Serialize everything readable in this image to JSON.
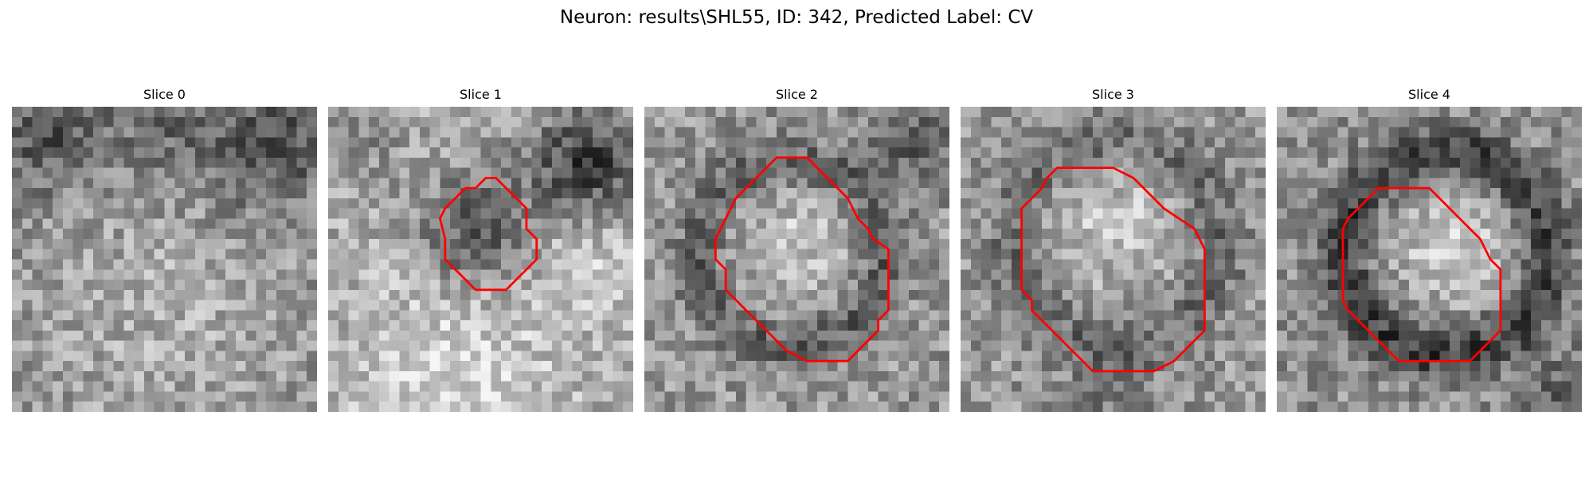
{
  "figure": {
    "suptitle": "Neuron: results\\SHL55, ID: 342, Predicted Label: CV",
    "contour_color": "#ff0000",
    "colormap": "grayscale",
    "panels": [
      {
        "title": "Slice 0",
        "has_contour": false
      },
      {
        "title": "Slice 1",
        "has_contour": true
      },
      {
        "title": "Slice 2",
        "has_contour": true
      },
      {
        "title": "Slice 3",
        "has_contour": true
      },
      {
        "title": "Slice 4",
        "has_contour": true
      }
    ]
  }
}
